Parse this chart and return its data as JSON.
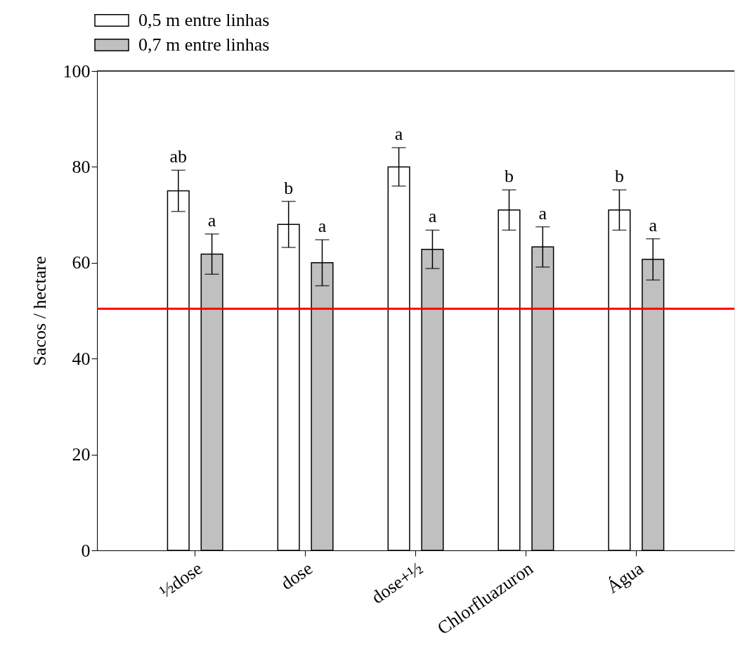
{
  "chart_data": {
    "type": "bar",
    "ylabel": "Sacos / hectare",
    "categories": [
      "½dose",
      "dose",
      "dose+½",
      "Chlorfluazuron",
      "Água"
    ],
    "series": [
      {
        "name": "0,5 m entre linhas",
        "color": "#ffffff",
        "values": [
          75.0,
          68.0,
          80.0,
          71.0,
          71.0
        ],
        "errors": [
          4.3,
          4.8,
          4.0,
          4.2,
          4.2
        ]
      },
      {
        "name": "0,7 m entre linhas",
        "color": "#c0c0c0",
        "values": [
          61.8,
          60.0,
          62.8,
          63.3,
          60.7
        ],
        "errors": [
          4.2,
          4.8,
          4.0,
          4.2,
          4.3
        ]
      }
    ],
    "ylim": [
      0,
      100
    ],
    "yticks": [
      0,
      20,
      40,
      60,
      80,
      100
    ],
    "ref_lines": [
      {
        "axis": "y",
        "value": 50.4,
        "color": "#ff0000"
      }
    ],
    "annotations": [
      "ab",
      "a",
      "b",
      "a",
      "a",
      "a",
      "b",
      "a",
      "b",
      "a"
    ],
    "legend": "top left",
    "grid": false
  }
}
